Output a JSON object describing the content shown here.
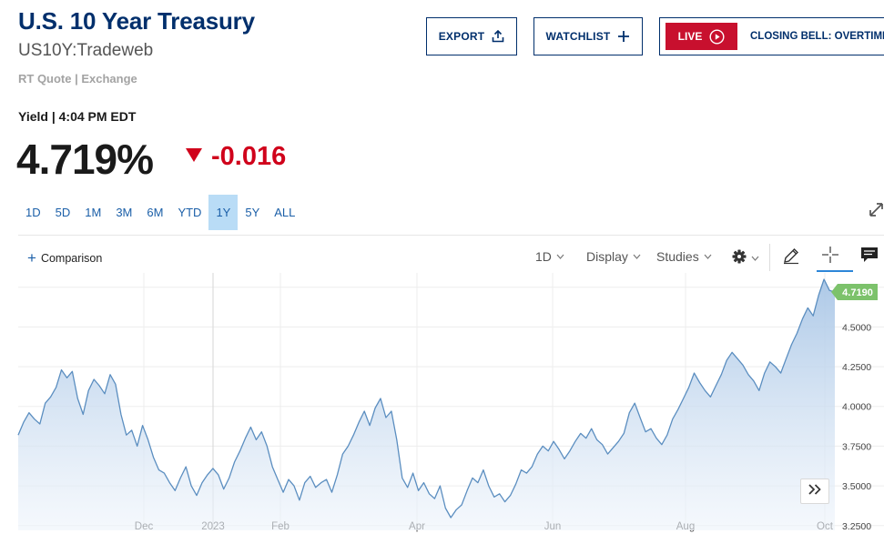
{
  "header": {
    "title": "U.S. 10 Year Treasury",
    "symbol": "US10Y:Tradeweb",
    "source_label": "RT Quote | Exchange"
  },
  "actions": {
    "export_label": "EXPORT",
    "watchlist_label": "WATCHLIST",
    "live_label": "LIVE",
    "live_show": "CLOSING BELL: OVERTIME"
  },
  "quote": {
    "yield_label": "Yield | 4:04 PM EDT",
    "value": "4.719%",
    "change": "-0.016",
    "direction": "down"
  },
  "range_tabs": {
    "items": [
      "1D",
      "5D",
      "1M",
      "3M",
      "6M",
      "YTD",
      "1Y",
      "5Y",
      "ALL"
    ],
    "active": "1Y"
  },
  "toolbar": {
    "comparison": "Comparison",
    "interval": "1D",
    "display": "Display",
    "studies": "Studies"
  },
  "icons": [
    "upload-icon",
    "plus-icon",
    "play-circle-icon",
    "expand-icon",
    "gear-icon",
    "pencil-icon",
    "crosshair-icon",
    "chat-icon",
    "double-chevron-right-icon"
  ],
  "colors": {
    "brand_navy": "#002f6c",
    "live_red": "#c8102e",
    "down_red": "#d0021b",
    "link_blue": "#1b5fa8",
    "active_tab": "#b9dcf6",
    "line": "#5b8ec0",
    "last_price": "#7cc26b"
  },
  "chart_data": {
    "type": "area",
    "x_ticks": [
      "Dec",
      "2023",
      "Feb",
      "Apr",
      "Jun",
      "Aug",
      "Oct"
    ],
    "y_ticks": [
      "3.2500",
      "3.5000",
      "3.7500",
      "4.0000",
      "4.2500",
      "4.5000",
      "4.7500"
    ],
    "ylim": [
      3.22,
      4.84
    ],
    "last_value_label": "4.7190",
    "grid": true,
    "series": [
      {
        "values": [
          3.82,
          3.9,
          3.96,
          3.92,
          3.89,
          4.02,
          4.06,
          4.12,
          4.23,
          4.18,
          4.22,
          4.05,
          3.95,
          4.1,
          4.17,
          4.13,
          4.08,
          4.2,
          4.14,
          3.95,
          3.82,
          3.85,
          3.75,
          3.88,
          3.79,
          3.68,
          3.6,
          3.58,
          3.52,
          3.47,
          3.55,
          3.62,
          3.5,
          3.44,
          3.52,
          3.57,
          3.61,
          3.57,
          3.48,
          3.55,
          3.65,
          3.72,
          3.8,
          3.87,
          3.79,
          3.84,
          3.75,
          3.62,
          3.54,
          3.46,
          3.54,
          3.5,
          3.41,
          3.52,
          3.56,
          3.49,
          3.52,
          3.54,
          3.46,
          3.57,
          3.7,
          3.75,
          3.82,
          3.9,
          3.97,
          3.88,
          3.99,
          4.05,
          3.93,
          3.97,
          3.79,
          3.55,
          3.49,
          3.58,
          3.47,
          3.52,
          3.45,
          3.42,
          3.5,
          3.36,
          3.3,
          3.35,
          3.38,
          3.47,
          3.55,
          3.52,
          3.6,
          3.5,
          3.43,
          3.45,
          3.4,
          3.44,
          3.51,
          3.6,
          3.58,
          3.62,
          3.7,
          3.75,
          3.72,
          3.78,
          3.73,
          3.67,
          3.72,
          3.78,
          3.83,
          3.8,
          3.86,
          3.79,
          3.76,
          3.7,
          3.74,
          3.78,
          3.83,
          3.96,
          4.02,
          3.93,
          3.84,
          3.86,
          3.8,
          3.76,
          3.82,
          3.92,
          3.98,
          4.05,
          4.12,
          4.21,
          4.15,
          4.1,
          4.06,
          4.13,
          4.2,
          4.29,
          4.34,
          4.3,
          4.26,
          4.2,
          4.16,
          4.1,
          4.21,
          4.28,
          4.25,
          4.21,
          4.3,
          4.39,
          4.46,
          4.55,
          4.62,
          4.57,
          4.7,
          4.8,
          4.73,
          4.72
        ]
      }
    ]
  }
}
